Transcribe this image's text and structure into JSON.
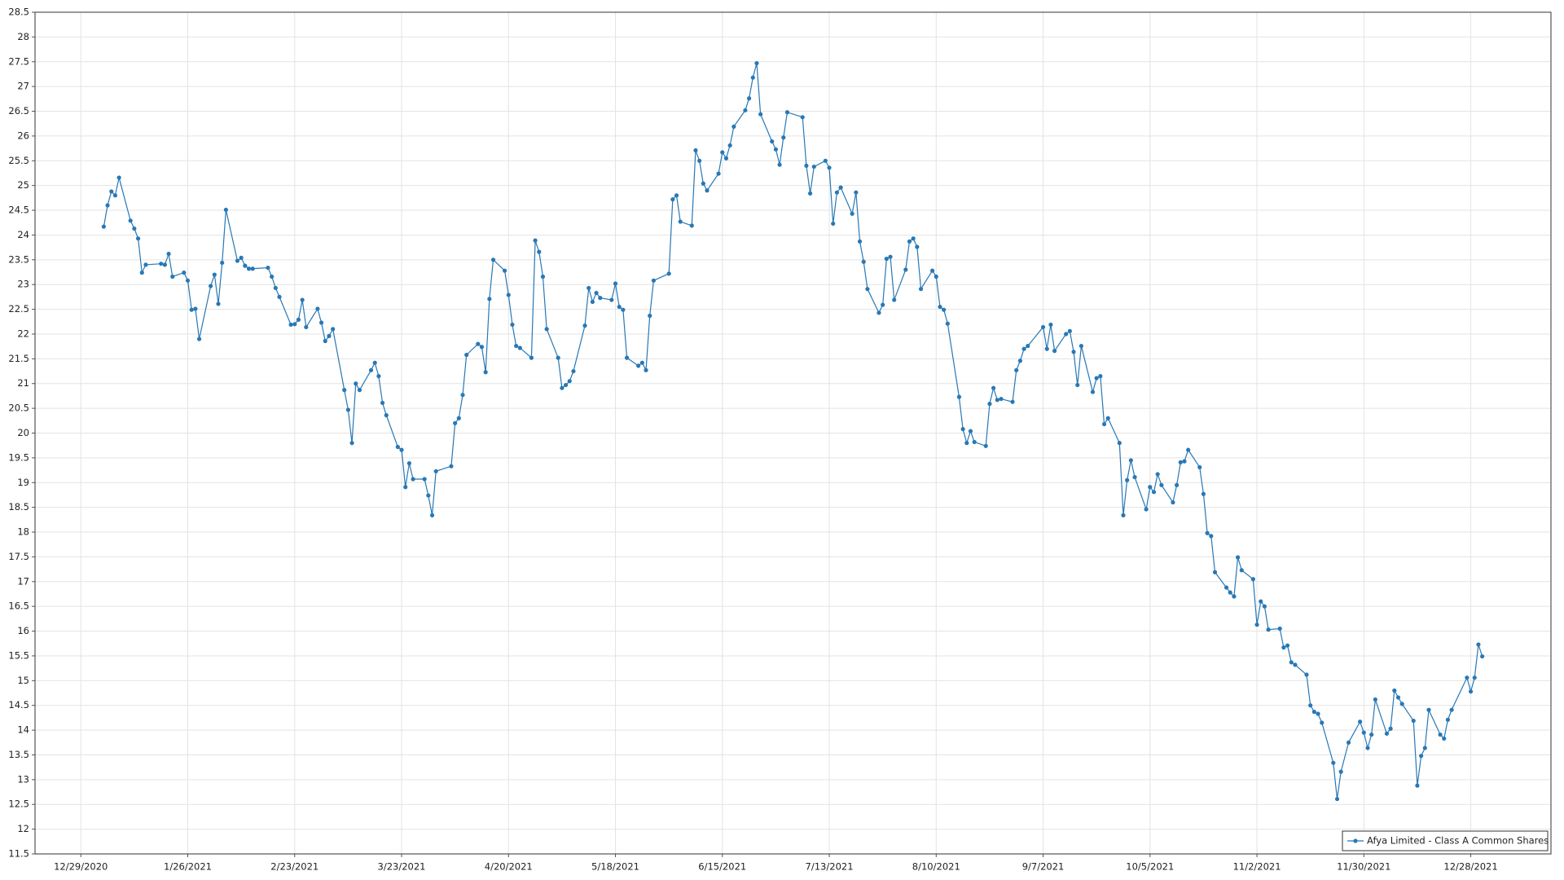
{
  "chart_data": {
    "type": "line",
    "x": [
      "1/4/2021",
      "1/5/2021",
      "1/6/2021",
      "1/7/2021",
      "1/8/2021",
      "1/11/2021",
      "1/12/2021",
      "1/13/2021",
      "1/14/2021",
      "1/15/2021",
      "1/19/2021",
      "1/20/2021",
      "1/21/2021",
      "1/22/2021",
      "1/25/2021",
      "1/26/2021",
      "1/27/2021",
      "1/28/2021",
      "1/29/2021",
      "2/1/2021",
      "2/2/2021",
      "2/3/2021",
      "2/4/2021",
      "2/5/2021",
      "2/8/2021",
      "2/9/2021",
      "2/10/2021",
      "2/11/2021",
      "2/12/2021",
      "2/16/2021",
      "2/17/2021",
      "2/18/2021",
      "2/19/2021",
      "2/22/2021",
      "2/23/2021",
      "2/24/2021",
      "2/25/2021",
      "2/26/2021",
      "3/1/2021",
      "3/2/2021",
      "3/3/2021",
      "3/4/2021",
      "3/5/2021",
      "3/8/2021",
      "3/9/2021",
      "3/10/2021",
      "3/11/2021",
      "3/12/2021",
      "3/15/2021",
      "3/16/2021",
      "3/17/2021",
      "3/18/2021",
      "3/19/2021",
      "3/22/2021",
      "3/23/2021",
      "3/24/2021",
      "3/25/2021",
      "3/26/2021",
      "3/29/2021",
      "3/30/2021",
      "3/31/2021",
      "4/1/2021",
      "4/5/2021",
      "4/6/2021",
      "4/7/2021",
      "4/8/2021",
      "4/9/2021",
      "4/12/2021",
      "4/13/2021",
      "4/14/2021",
      "4/15/2021",
      "4/16/2021",
      "4/19/2021",
      "4/20/2021",
      "4/21/2021",
      "4/22/2021",
      "4/23/2021",
      "4/26/2021",
      "4/27/2021",
      "4/28/2021",
      "4/29/2021",
      "4/30/2021",
      "5/3/2021",
      "5/4/2021",
      "5/5/2021",
      "5/6/2021",
      "5/7/2021",
      "5/10/2021",
      "5/11/2021",
      "5/12/2021",
      "5/13/2021",
      "5/14/2021",
      "5/17/2021",
      "5/18/2021",
      "5/19/2021",
      "5/20/2021",
      "5/21/2021",
      "5/24/2021",
      "5/25/2021",
      "5/26/2021",
      "5/27/2021",
      "5/28/2021",
      "6/1/2021",
      "6/2/2021",
      "6/3/2021",
      "6/4/2021",
      "6/7/2021",
      "6/8/2021",
      "6/9/2021",
      "6/10/2021",
      "6/11/2021",
      "6/14/2021",
      "6/15/2021",
      "6/16/2021",
      "6/17/2021",
      "6/18/2021",
      "6/21/2021",
      "6/22/2021",
      "6/23/2021",
      "6/24/2021",
      "6/25/2021",
      "6/28/2021",
      "6/29/2021",
      "6/30/2021",
      "7/1/2021",
      "7/2/2021",
      "7/6/2021",
      "7/7/2021",
      "7/8/2021",
      "7/9/2021",
      "7/12/2021",
      "7/13/2021",
      "7/14/2021",
      "7/15/2021",
      "7/16/2021",
      "7/19/2021",
      "7/20/2021",
      "7/21/2021",
      "7/22/2021",
      "7/23/2021",
      "7/26/2021",
      "7/27/2021",
      "7/28/2021",
      "7/29/2021",
      "7/30/2021",
      "8/2/2021",
      "8/3/2021",
      "8/4/2021",
      "8/5/2021",
      "8/6/2021",
      "8/9/2021",
      "8/10/2021",
      "8/11/2021",
      "8/12/2021",
      "8/13/2021",
      "8/16/2021",
      "8/17/2021",
      "8/18/2021",
      "8/19/2021",
      "8/20/2021",
      "8/23/2021",
      "8/24/2021",
      "8/25/2021",
      "8/26/2021",
      "8/27/2021",
      "8/30/2021",
      "8/31/2021",
      "9/1/2021",
      "9/2/2021",
      "9/3/2021",
      "9/7/2021",
      "9/8/2021",
      "9/9/2021",
      "9/10/2021",
      "9/13/2021",
      "9/14/2021",
      "9/15/2021",
      "9/16/2021",
      "9/17/2021",
      "9/20/2021",
      "9/21/2021",
      "9/22/2021",
      "9/23/2021",
      "9/24/2021",
      "9/27/2021",
      "9/28/2021",
      "9/29/2021",
      "9/30/2021",
      "10/1/2021",
      "10/4/2021",
      "10/5/2021",
      "10/6/2021",
      "10/7/2021",
      "10/8/2021",
      "10/11/2021",
      "10/12/2021",
      "10/13/2021",
      "10/14/2021",
      "10/15/2021",
      "10/18/2021",
      "10/19/2021",
      "10/20/2021",
      "10/21/2021",
      "10/22/2021",
      "10/25/2021",
      "10/26/2021",
      "10/27/2021",
      "10/28/2021",
      "10/29/2021",
      "11/1/2021",
      "11/2/2021",
      "11/3/2021",
      "11/4/2021",
      "11/5/2021",
      "11/8/2021",
      "11/9/2021",
      "11/10/2021",
      "11/11/2021",
      "11/12/2021",
      "11/15/2021",
      "11/16/2021",
      "11/17/2021",
      "11/18/2021",
      "11/19/2021",
      "11/22/2021",
      "11/23/2021",
      "11/24/2021",
      "11/26/2021",
      "11/29/2021",
      "11/30/2021",
      "12/1/2021",
      "12/2/2021",
      "12/3/2021",
      "12/6/2021",
      "12/7/2021",
      "12/8/2021",
      "12/9/2021",
      "12/10/2021",
      "12/13/2021",
      "12/14/2021",
      "12/15/2021",
      "12/16/2021",
      "12/17/2021",
      "12/20/2021",
      "12/21/2021",
      "12/22/2021",
      "12/23/2021",
      "12/27/2021",
      "12/28/2021",
      "12/29/2021",
      "12/30/2021",
      "12/31/2021"
    ],
    "series": [
      {
        "name": "Afya Limited - Class A Common Shares",
        "color": "#2878b5",
        "values": [
          24.17,
          24.6,
          24.88,
          24.8,
          25.16,
          24.29,
          24.13,
          23.93,
          23.24,
          23.4,
          23.42,
          23.4,
          23.62,
          23.16,
          23.24,
          23.08,
          22.49,
          22.51,
          21.9,
          22.97,
          23.2,
          22.61,
          23.44,
          24.51,
          23.48,
          23.54,
          23.38,
          23.32,
          23.32,
          23.34,
          23.16,
          22.93,
          22.75,
          22.19,
          22.2,
          22.29,
          22.69,
          22.14,
          22.51,
          22.23,
          21.86,
          21.96,
          22.1,
          20.87,
          20.47,
          19.8,
          21.0,
          20.87,
          21.27,
          21.42,
          21.15,
          20.61,
          20.36,
          19.72,
          19.66,
          18.91,
          19.39,
          19.07,
          19.07,
          18.74,
          18.34,
          19.23,
          19.33,
          20.2,
          20.3,
          20.77,
          21.58,
          21.8,
          21.74,
          21.23,
          22.71,
          23.5,
          23.28,
          22.79,
          22.19,
          21.76,
          21.72,
          21.52,
          23.89,
          23.66,
          23.16,
          22.1,
          21.52,
          20.91,
          20.97,
          21.05,
          21.25,
          22.17,
          22.93,
          22.65,
          22.83,
          22.73,
          22.69,
          23.02,
          22.55,
          22.49,
          21.52,
          21.36,
          21.42,
          21.27,
          22.37,
          23.08,
          23.22,
          24.72,
          24.8,
          24.27,
          24.19,
          25.71,
          25.5,
          25.04,
          24.9,
          25.24,
          25.67,
          25.55,
          25.81,
          26.19,
          26.52,
          26.76,
          27.18,
          27.47,
          26.44,
          25.89,
          25.73,
          25.42,
          25.97,
          26.48,
          26.38,
          25.4,
          24.84,
          25.38,
          25.5,
          25.36,
          24.23,
          24.86,
          24.96,
          24.43,
          24.86,
          23.87,
          23.46,
          22.91,
          22.43,
          22.59,
          23.52,
          23.56,
          22.69,
          23.3,
          23.87,
          23.93,
          23.76,
          22.91,
          23.28,
          23.16,
          22.55,
          22.49,
          22.21,
          20.73,
          20.08,
          19.8,
          20.04,
          19.82,
          19.74,
          20.59,
          20.91,
          20.67,
          20.69,
          20.63,
          21.27,
          21.46,
          21.7,
          21.76,
          22.14,
          21.7,
          22.19,
          21.66,
          22.0,
          22.06,
          21.64,
          20.97,
          21.76,
          20.83,
          21.11,
          21.15,
          20.18,
          20.3,
          19.8,
          18.34,
          19.05,
          19.45,
          19.11,
          18.46,
          18.91,
          18.81,
          19.17,
          18.95,
          18.6,
          18.95,
          19.41,
          19.43,
          19.66,
          19.31,
          18.77,
          17.98,
          17.92,
          17.19,
          16.88,
          16.78,
          16.7,
          17.49,
          17.23,
          17.05,
          16.13,
          16.6,
          16.5,
          16.03,
          16.05,
          15.67,
          15.71,
          15.37,
          15.32,
          15.12,
          14.5,
          14.37,
          14.33,
          14.15,
          13.34,
          12.61,
          13.16,
          13.75,
          14.17,
          13.95,
          13.64,
          13.91,
          14.62,
          13.93,
          14.03,
          14.8,
          14.66,
          14.53,
          14.19,
          12.88,
          13.48,
          13.64,
          14.41,
          13.91,
          13.83,
          14.21,
          14.41,
          15.06,
          14.78,
          15.06,
          15.73,
          15.49
        ]
      }
    ],
    "xlim": [
      "12/17/2020",
      "1/18/2022"
    ],
    "xticks": [
      "12/29/2020",
      "1/26/2021",
      "2/23/2021",
      "3/23/2021",
      "4/20/2021",
      "5/18/2021",
      "6/15/2021",
      "7/13/2021",
      "8/10/2021",
      "9/7/2021",
      "10/5/2021",
      "11/2/2021",
      "11/30/2021",
      "12/28/2021"
    ],
    "ylim": [
      11.5,
      28.5
    ],
    "yticks": [
      11.5,
      12,
      12.5,
      13,
      13.5,
      14,
      14.5,
      15,
      15.5,
      16,
      16.5,
      17,
      17.5,
      18,
      18.5,
      19,
      19.5,
      20,
      20.5,
      21,
      21.5,
      22,
      22.5,
      23,
      23.5,
      24,
      24.5,
      25,
      25.5,
      26,
      26.5,
      27,
      27.5,
      28,
      28.5
    ],
    "grid": true,
    "legend": "lower right"
  }
}
